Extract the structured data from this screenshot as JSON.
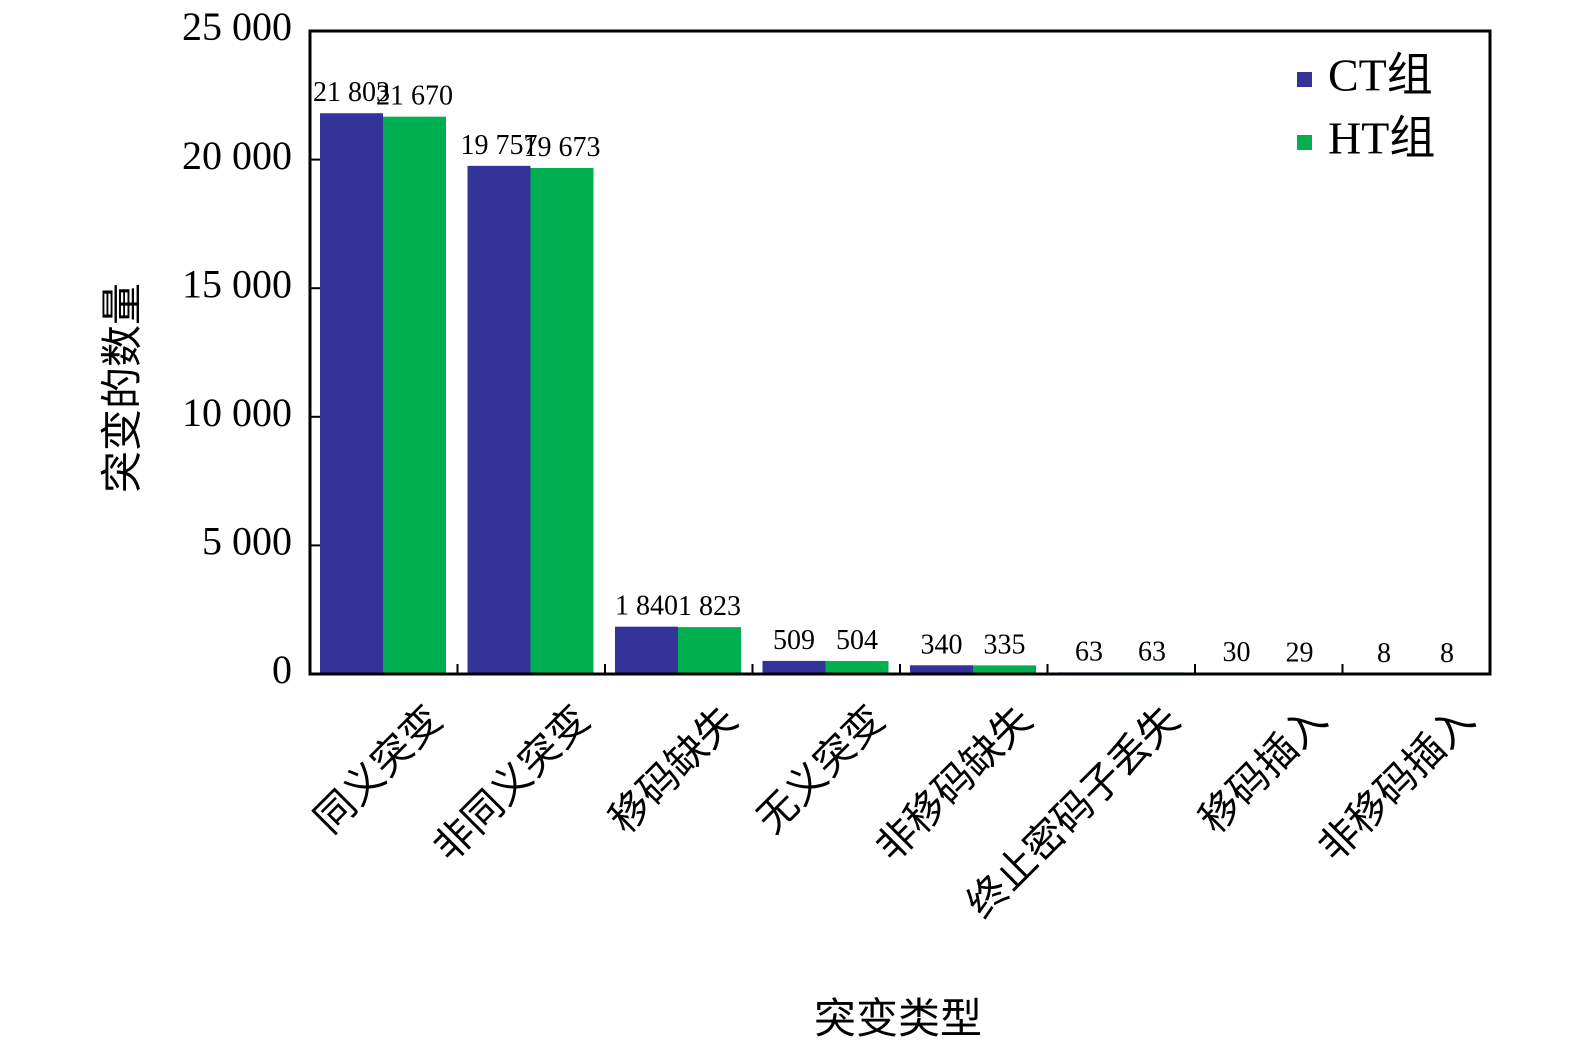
{
  "chart_data": {
    "type": "bar",
    "xlabel": "突变类型",
    "ylabel": "突变的数量",
    "ylim": [
      0,
      25000
    ],
    "yticks": [
      0,
      5000,
      10000,
      15000,
      20000,
      25000
    ],
    "ytick_labels": [
      "0",
      "5 000",
      "10 000",
      "15 000",
      "20 000",
      "25 000"
    ],
    "legend_position": "top-right",
    "categories": [
      "同义突变",
      "非同义突变",
      "移码缺失",
      "无义突变",
      "非移码缺失",
      "终止密码子丢失",
      "移码插入",
      "非移码插入"
    ],
    "series": [
      {
        "name": "CT组",
        "color": "#333399",
        "values": [
          21803,
          19757,
          1840,
          509,
          340,
          63,
          30,
          8
        ],
        "labels": [
          "21 803",
          "19 757",
          "1 840",
          "509",
          "340",
          "63",
          "30",
          "8"
        ]
      },
      {
        "name": "HT组",
        "color": "#00B050",
        "values": [
          21670,
          19673,
          1823,
          504,
          335,
          63,
          29,
          8
        ],
        "labels": [
          "21 670",
          "19 673",
          "1 823",
          "504",
          "335",
          "63",
          "29",
          "8"
        ]
      }
    ]
  }
}
